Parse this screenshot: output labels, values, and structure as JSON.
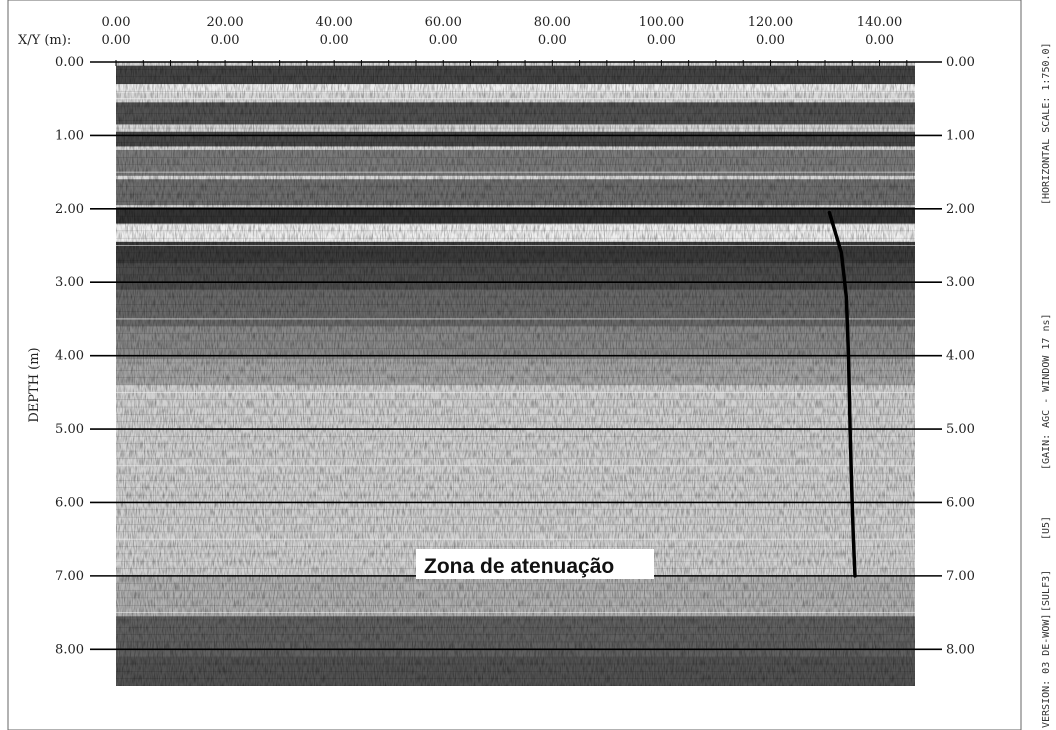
{
  "chart_data": {
    "type": "radargram",
    "x_header_label": "X/Y (m):",
    "x_ticks": [
      "0.00",
      "20.00",
      "40.00",
      "60.00",
      "80.00",
      "100.00",
      "120.00",
      "140.00"
    ],
    "y_ticks": [
      "0.00",
      "0.00",
      "0.00",
      "0.00",
      "0.00",
      "0.00",
      "0.00",
      "0.00"
    ],
    "x_tick_values": [
      0,
      20,
      40,
      60,
      80,
      100,
      120,
      140
    ],
    "xlim": [
      0,
      146.5
    ],
    "ylabel": "DEPTH (m)",
    "depth_ticks": [
      "0.00",
      "1.00",
      "2.00",
      "3.00",
      "4.00",
      "5.00",
      "6.00",
      "7.00",
      "8.00"
    ],
    "depth_tick_values": [
      0,
      1,
      2,
      3,
      4,
      5,
      6,
      7,
      8
    ],
    "ylim": [
      0,
      8.5
    ],
    "grid": "horizontal",
    "annotation": "Zona de atenuação",
    "interpreted_line": {
      "x": [
        130.8,
        133.0,
        133.9,
        134.3,
        134.6,
        134.9,
        135.2,
        135.5
      ],
      "depth": [
        2.05,
        2.6,
        3.2,
        4.0,
        5.0,
        5.8,
        6.5,
        7.0
      ]
    },
    "side_labels": {
      "scale": "[HORIZONTAL SCALE: 1:750.0]",
      "gain": "[GAIN: AGC - WINDOW 17 ns]",
      "u5": "[U5]",
      "sulf3": "[SULF3]",
      "version": "VERSION: 03 DE-WOW]"
    },
    "colors": {
      "trace_dark": "#1a1a1a",
      "trace_light": "#e8e8e8",
      "frame": "#555555"
    }
  }
}
